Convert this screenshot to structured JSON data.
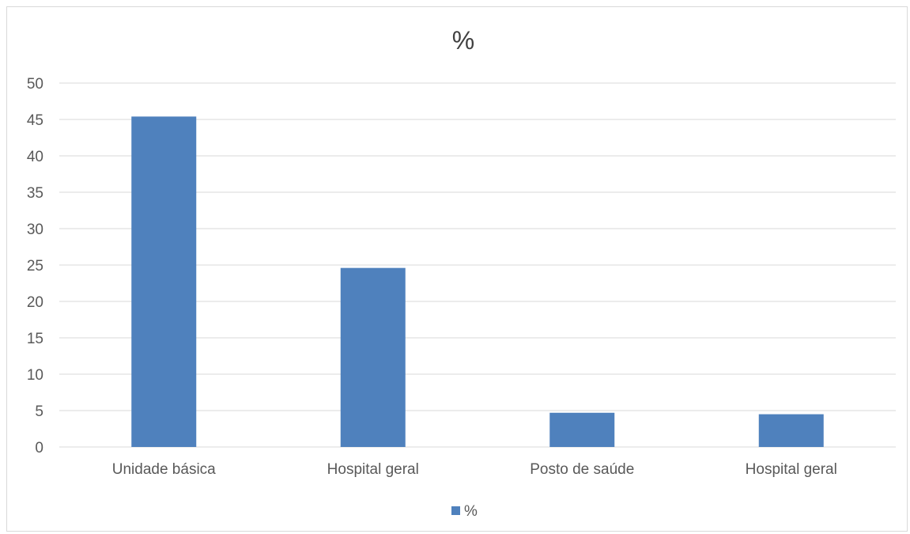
{
  "chart_data": {
    "type": "bar",
    "title": "%",
    "categories": [
      "Unidade básica",
      "Hospital geral",
      "Posto de saúde",
      "Hospital geral"
    ],
    "series": [
      {
        "name": "%",
        "values": [
          45.4,
          24.6,
          4.7,
          4.5
        ],
        "color": "#4f81bd"
      }
    ],
    "y_ticks": [
      "0",
      "5",
      "10",
      "15",
      "20",
      "25",
      "30",
      "35",
      "40",
      "45",
      "50"
    ],
    "ylim": [
      0,
      50
    ],
    "grid": true,
    "legend_position": "bottom",
    "colors": {
      "bar": "#4f81bd",
      "gridline": "#d9d9d9",
      "text": "#595959",
      "title": "#404040"
    }
  }
}
